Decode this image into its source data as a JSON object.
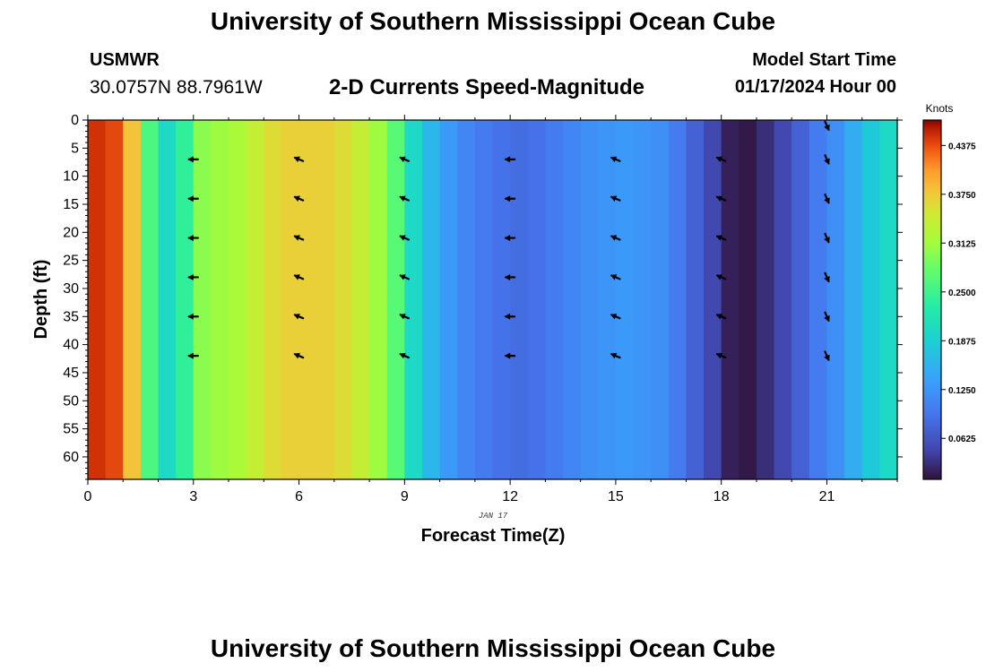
{
  "header": {
    "main_title": "University of Southern Mississippi Ocean Cube",
    "station_id": "USMWR",
    "station_coords": "30.0757N  88.7961W",
    "subtitle": "2-D Currents Speed-Magnitude",
    "start_label": "Model Start Time",
    "start_time": "01/17/2024 Hour 00"
  },
  "footer": {
    "title": "University of Southern Mississippi Ocean Cube"
  },
  "chart_data": {
    "type": "heatmap",
    "title": "2-D Currents Speed-Magnitude",
    "xlabel": "Forecast Time(Z)",
    "ylabel": "Depth (ft)",
    "date_label": "JAN 17",
    "xlim": [
      0,
      23
    ],
    "ylim": [
      0,
      64
    ],
    "x_ticks": [
      0,
      3,
      6,
      9,
      12,
      15,
      18,
      21
    ],
    "y_ticks": [
      0,
      5,
      10,
      15,
      20,
      25,
      30,
      35,
      40,
      45,
      50,
      55,
      60
    ],
    "colorbar": {
      "label": "Knots",
      "min": 0.01,
      "max": 0.47,
      "ticks": [
        "0.4375",
        "0.3750",
        "0.3125",
        "0.2500",
        "0.1875",
        "0.1250",
        "0.0625"
      ],
      "tick_values": [
        0.4375,
        0.375,
        0.3125,
        0.25,
        0.1875,
        0.125,
        0.0625
      ]
    },
    "columns": [
      {
        "hour": 0.0,
        "speed": 0.45
      },
      {
        "hour": 0.5,
        "speed": 0.44
      },
      {
        "hour": 1.0,
        "speed": 0.38
      },
      {
        "hour": 1.5,
        "speed": 0.26
      },
      {
        "hour": 2.0,
        "speed": 0.2
      },
      {
        "hour": 2.5,
        "speed": 0.24
      },
      {
        "hour": 3.0,
        "speed": 0.3
      },
      {
        "hour": 3.5,
        "speed": 0.31
      },
      {
        "hour": 4.0,
        "speed": 0.32
      },
      {
        "hour": 4.5,
        "speed": 0.34
      },
      {
        "hour": 5.0,
        "speed": 0.36
      },
      {
        "hour": 5.5,
        "speed": 0.37
      },
      {
        "hour": 6.0,
        "speed": 0.37
      },
      {
        "hour": 6.5,
        "speed": 0.37
      },
      {
        "hour": 7.0,
        "speed": 0.36
      },
      {
        "hour": 7.5,
        "speed": 0.34
      },
      {
        "hour": 8.0,
        "speed": 0.31
      },
      {
        "hour": 8.5,
        "speed": 0.27
      },
      {
        "hour": 9.0,
        "speed": 0.2
      },
      {
        "hour": 9.5,
        "speed": 0.16
      },
      {
        "hour": 10.0,
        "speed": 0.13
      },
      {
        "hour": 10.5,
        "speed": 0.11
      },
      {
        "hour": 11.0,
        "speed": 0.1
      },
      {
        "hour": 11.5,
        "speed": 0.09
      },
      {
        "hour": 12.0,
        "speed": 0.085
      },
      {
        "hour": 12.5,
        "speed": 0.09
      },
      {
        "hour": 13.0,
        "speed": 0.1
      },
      {
        "hour": 13.5,
        "speed": 0.11
      },
      {
        "hour": 14.0,
        "speed": 0.12
      },
      {
        "hour": 14.5,
        "speed": 0.125
      },
      {
        "hour": 15.0,
        "speed": 0.13
      },
      {
        "hour": 15.5,
        "speed": 0.125
      },
      {
        "hour": 16.0,
        "speed": 0.12
      },
      {
        "hour": 16.5,
        "speed": 0.1
      },
      {
        "hour": 17.0,
        "speed": 0.075
      },
      {
        "hour": 17.5,
        "speed": 0.05
      },
      {
        "hour": 18.0,
        "speed": 0.02
      },
      {
        "hour": 18.5,
        "speed": 0.015
      },
      {
        "hour": 19.0,
        "speed": 0.03
      },
      {
        "hour": 19.5,
        "speed": 0.05
      },
      {
        "hour": 20.0,
        "speed": 0.075
      },
      {
        "hour": 20.5,
        "speed": 0.1
      },
      {
        "hour": 21.0,
        "speed": 0.12
      },
      {
        "hour": 21.5,
        "speed": 0.15
      },
      {
        "hour": 22.0,
        "speed": 0.18
      },
      {
        "hour": 22.5,
        "speed": 0.2
      }
    ],
    "vector_depths": [
      1,
      7,
      14,
      21,
      28,
      35,
      42
    ],
    "vectors": [
      {
        "hour": 3,
        "direction": "west",
        "depths": [
          7,
          14,
          21,
          28,
          35,
          42
        ]
      },
      {
        "hour": 6,
        "direction": "west-northwest",
        "depths": [
          7,
          14,
          21,
          28,
          35,
          42
        ]
      },
      {
        "hour": 9,
        "direction": "west-northwest",
        "depths": [
          7,
          14,
          21,
          28,
          35,
          42
        ]
      },
      {
        "hour": 12,
        "direction": "west",
        "depths": [
          7,
          14,
          21,
          28,
          35,
          42
        ]
      },
      {
        "hour": 15,
        "direction": "west-northwest",
        "depths": [
          7,
          14,
          21,
          28,
          35,
          42
        ]
      },
      {
        "hour": 18,
        "direction": "west-northwest",
        "depths": [
          7,
          14,
          21,
          28,
          35,
          42
        ]
      },
      {
        "hour": 21,
        "direction": "south-southeast",
        "depths": [
          1,
          7,
          14,
          21,
          28,
          35,
          42
        ]
      }
    ]
  }
}
